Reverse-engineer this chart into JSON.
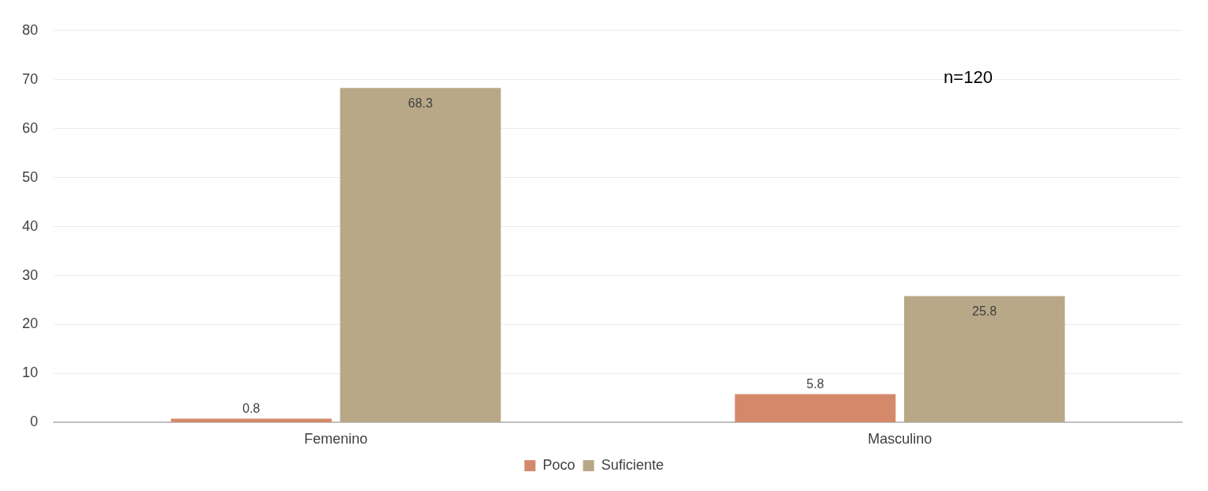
{
  "chart_data": {
    "type": "bar",
    "categories": [
      "Femenino",
      "Masculino"
    ],
    "series": [
      {
        "name": "Poco",
        "color": "#d4896a",
        "values": [
          0.8,
          5.8
        ]
      },
      {
        "name": "Suficiente",
        "color": "#b8a888",
        "values": [
          68.3,
          25.8
        ]
      }
    ],
    "ylim": [
      0,
      80
    ],
    "yticks": [
      0,
      10,
      20,
      30,
      40,
      50,
      60,
      70,
      80
    ],
    "grid": "y",
    "legend": "bottom",
    "data_labels": true,
    "annotations": [
      "n=120"
    ]
  }
}
